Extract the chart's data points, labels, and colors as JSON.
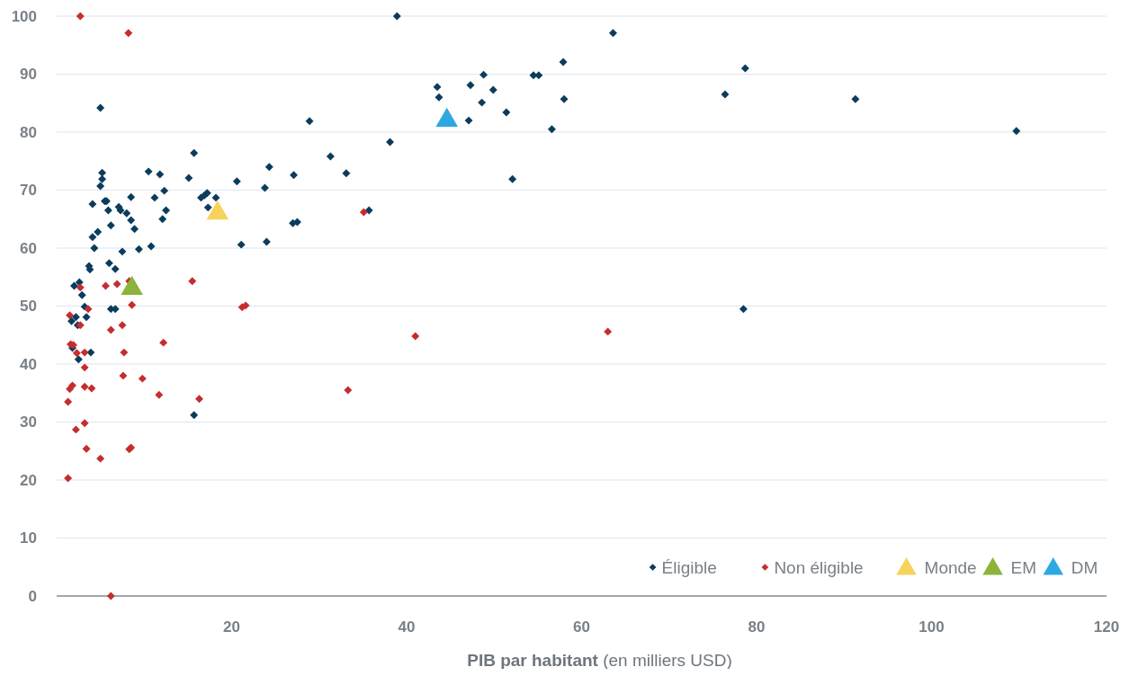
{
  "chart_data": {
    "type": "scatter",
    "xlabel": "PIB par habitant (en milliers USD)",
    "xlim": [
      0,
      120
    ],
    "xticks": [
      20,
      40,
      60,
      80,
      100,
      120
    ],
    "ylim": [
      0,
      100
    ],
    "yticks": [
      0,
      10,
      20,
      30,
      40,
      50,
      60,
      70,
      80,
      90,
      100
    ],
    "grid": "y",
    "legend": "bottom right",
    "series": [
      {
        "name": "Éligible",
        "color": "#0b3c5d",
        "marker": "diamond",
        "x": [
          38.9,
          63.6,
          78.7,
          57.9,
          54.5,
          55.1,
          48.8,
          47.3,
          49.9,
          43.5,
          43.7,
          76.4,
          91.3,
          58.0,
          48.6,
          51.4,
          47.1,
          56.6,
          109.7,
          28.9,
          5.0,
          15.7,
          31.3,
          10.5,
          5.2,
          5.2,
          5.0,
          24.3,
          27.1,
          33.1,
          11.8,
          15.1,
          20.6,
          52.1,
          38.1,
          12.3,
          11.2,
          8.5,
          16.9,
          16.5,
          17.2,
          23.8,
          5.5,
          5.7,
          4.1,
          7.1,
          7.3,
          12.5,
          18.2,
          17.3,
          35.7,
          5.9,
          8.0,
          8.5,
          12.1,
          27.5,
          27.0,
          6.2,
          8.9,
          4.7,
          4.1,
          4.3,
          21.1,
          24.0,
          10.8,
          9.4,
          7.5,
          6.0,
          3.7,
          3.8,
          6.7,
          2.0,
          2.6,
          2.9,
          3.2,
          6.2,
          6.7,
          78.5,
          2.2,
          3.4,
          2.4,
          2.5,
          3.9,
          1.7,
          1.8,
          15.7
        ],
        "values": [
          100,
          97.1,
          91.0,
          92.1,
          89.8,
          89.8,
          89.9,
          88.1,
          87.3,
          87.8,
          86.0,
          86.5,
          85.7,
          85.7,
          85.1,
          83.4,
          82.0,
          80.5,
          80.2,
          81.9,
          84.2,
          76.4,
          75.8,
          73.2,
          73.0,
          71.9,
          70.7,
          74.0,
          72.6,
          72.9,
          72.7,
          72.1,
          71.5,
          71.9,
          78.3,
          69.9,
          68.7,
          68.8,
          69.1,
          68.7,
          69.5,
          70.4,
          68.1,
          68.1,
          67.6,
          67.1,
          66.5,
          66.5,
          68.7,
          67.0,
          66.5,
          66.5,
          66.0,
          64.8,
          65.0,
          64.5,
          64.3,
          63.9,
          63.3,
          62.8,
          61.9,
          60.0,
          60.6,
          61.1,
          60.3,
          59.8,
          59.4,
          57.4,
          56.9,
          56.3,
          56.4,
          53.5,
          54.1,
          51.9,
          49.9,
          49.5,
          49.5,
          49.5,
          48.1,
          48.1,
          46.7,
          40.8,
          42.0,
          47.4,
          42.8,
          31.2
        ]
      },
      {
        "name": "Non éligible",
        "color": "#c62d2d",
        "marker": "diamond",
        "x": [
          2.7,
          8.2,
          35.1,
          15.5,
          6.9,
          5.6,
          2.7,
          8.3,
          8.6,
          21.6,
          21.2,
          3.6,
          1.5,
          2.7,
          6.2,
          7.5,
          12.2,
          41.0,
          63.0,
          1.6,
          1.9,
          2.3,
          3.2,
          7.7,
          3.2,
          7.6,
          9.8,
          1.8,
          1.5,
          3.2,
          4.0,
          11.7,
          16.3,
          33.3,
          1.3,
          3.2,
          2.2,
          3.4,
          8.3,
          8.5,
          5.0,
          1.3,
          6.2
        ],
        "values": [
          100,
          97.1,
          66.2,
          54.3,
          53.8,
          53.5,
          53.2,
          54.3,
          50.2,
          50.1,
          49.8,
          49.5,
          48.4,
          46.7,
          45.9,
          46.7,
          43.7,
          44.8,
          45.6,
          43.4,
          43.3,
          41.9,
          42.0,
          42.0,
          39.4,
          38.0,
          37.5,
          36.3,
          35.7,
          36.1,
          35.8,
          34.7,
          34.0,
          35.5,
          33.5,
          29.8,
          28.7,
          25.4,
          25.3,
          25.6,
          23.7,
          20.3,
          0
        ]
      },
      {
        "name": "Monde",
        "color": "#f7d25c",
        "marker": "triangle",
        "x": [
          18.4
        ],
        "values": [
          66.5
        ]
      },
      {
        "name": "EM",
        "color": "#8db33a",
        "marker": "triangle",
        "x": [
          8.6
        ],
        "values": [
          53.5
        ]
      },
      {
        "name": "DM",
        "color": "#2ea8e0",
        "marker": "triangle",
        "x": [
          44.6
        ],
        "values": [
          82.5
        ]
      }
    ]
  }
}
